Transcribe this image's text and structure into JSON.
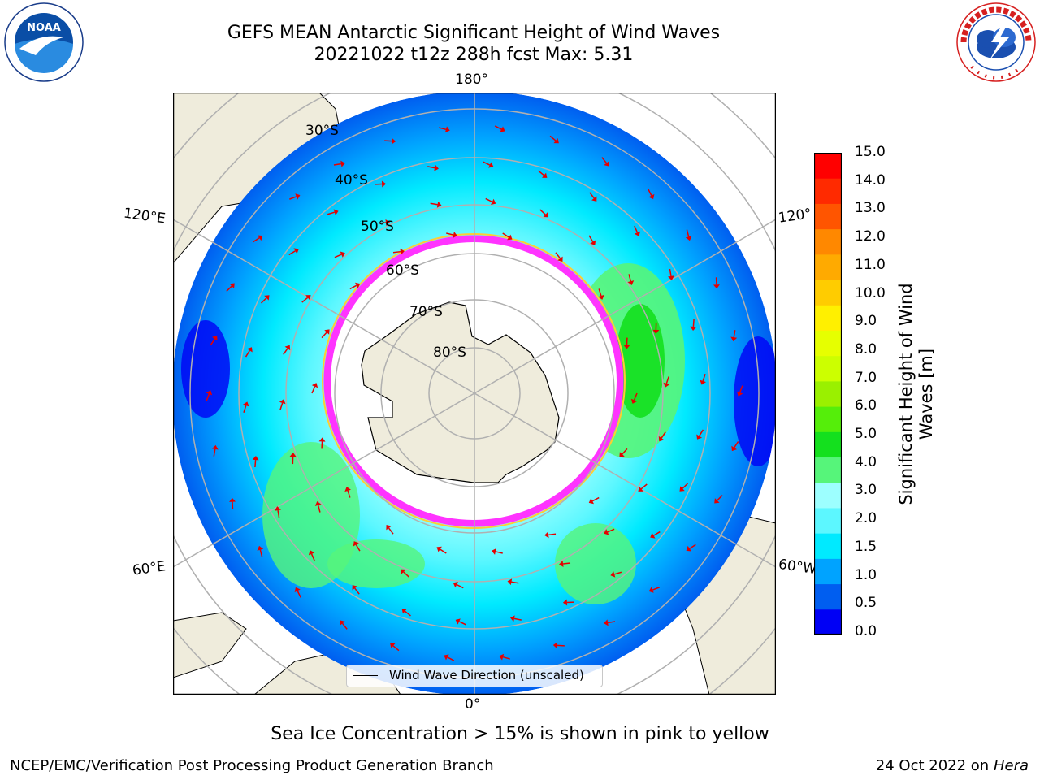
{
  "header": {
    "title_line1": "GEFS MEAN Antarctic Significant Height of Wind Waves",
    "title_line2": "20221022 t12z 288h fcst   Max: 5.31"
  },
  "logos": {
    "noaa": "NOAA",
    "nws": "NATIONAL WEATHER SERVICE"
  },
  "map": {
    "lon_labels": {
      "top": "180°",
      "bottom": "0°",
      "left_upper": "120°E",
      "left_lower": "60°E",
      "right_upper": "120°",
      "right_lower": "60°W"
    },
    "lat_labels": [
      "30°S",
      "40°S",
      "50°S",
      "60°S",
      "70°S",
      "80°S"
    ],
    "legend": "Wind Wave Direction (unscaled)",
    "colors": {
      "land": "#efecdc",
      "ice": "#ff33ff",
      "arrow": "#e60000"
    }
  },
  "colorbar": {
    "label": "Significant Height of Wind Waves [m]",
    "ticks": [
      "15.0",
      "14.0",
      "13.0",
      "12.0",
      "11.0",
      "10.0",
      "9.0",
      "8.0",
      "7.0",
      "6.0",
      "5.0",
      "4.0",
      "3.0",
      "2.0",
      "1.5",
      "1.0",
      "0.5",
      "0.0"
    ],
    "colors": [
      "#0000f5",
      "#005ef0",
      "#00a3ff",
      "#00eaff",
      "#5cf7ff",
      "#9dffff",
      "#56f57a",
      "#14e01e",
      "#55ee0a",
      "#9af000",
      "#ccff00",
      "#e6ff00",
      "#fff000",
      "#ffcc00",
      "#ffaa00",
      "#ff8800",
      "#ff5500",
      "#ff2a00",
      "#ff0000"
    ]
  },
  "footer": {
    "caption": "Sea Ice Concentration > 15% is shown in pink to yellow",
    "left": "NCEP/EMC/Verification Post Processing Product Generation Branch",
    "right_date": "24 Oct 2022 on ",
    "right_host": "Hera"
  }
}
